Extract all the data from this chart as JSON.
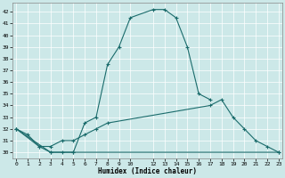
{
  "xlabel": "Humidex (Indice chaleur)",
  "background_color": "#cce8e8",
  "grid_color": "#b8d8d8",
  "line_color": "#1a6b6b",
  "xlim": [
    -0.3,
    23.3
  ],
  "ylim": [
    29.5,
    42.8
  ],
  "xtick_pos": [
    0,
    1,
    2,
    3,
    4,
    5,
    6,
    7,
    8,
    9,
    10,
    12,
    13,
    14,
    15,
    16,
    17,
    18,
    19,
    20,
    21,
    22,
    23
  ],
  "xtick_labels": [
    "0",
    "1",
    "2",
    "3",
    "4",
    "5",
    "6",
    "7",
    "8",
    "9",
    "10",
    "12",
    "13",
    "14",
    "15",
    "16",
    "17",
    "18",
    "19",
    "20",
    "21",
    "22",
    "23"
  ],
  "ytick_vals": [
    30,
    31,
    32,
    33,
    34,
    35,
    36,
    37,
    38,
    39,
    40,
    41,
    42
  ],
  "line1_x": [
    0,
    1,
    2,
    3,
    4,
    5,
    6,
    7,
    8,
    9,
    10,
    12,
    13,
    14,
    15,
    16,
    17
  ],
  "line1_y": [
    32,
    31.5,
    30.5,
    30,
    30,
    30,
    32.5,
    33,
    37.5,
    39,
    41.5,
    42.2,
    42.2,
    41.5,
    39,
    35,
    34.5
  ],
  "line2_x": [
    0,
    2,
    3,
    4,
    5,
    6,
    7,
    8,
    17,
    18,
    19,
    20,
    21,
    22,
    23
  ],
  "line2_y": [
    32,
    30.5,
    30.5,
    31,
    31,
    31.5,
    32,
    32.5,
    34,
    34.5,
    33,
    32,
    31,
    30.5,
    30
  ],
  "line3_x": [
    0,
    3,
    5,
    23
  ],
  "line3_y": [
    32,
    30,
    30,
    30
  ]
}
